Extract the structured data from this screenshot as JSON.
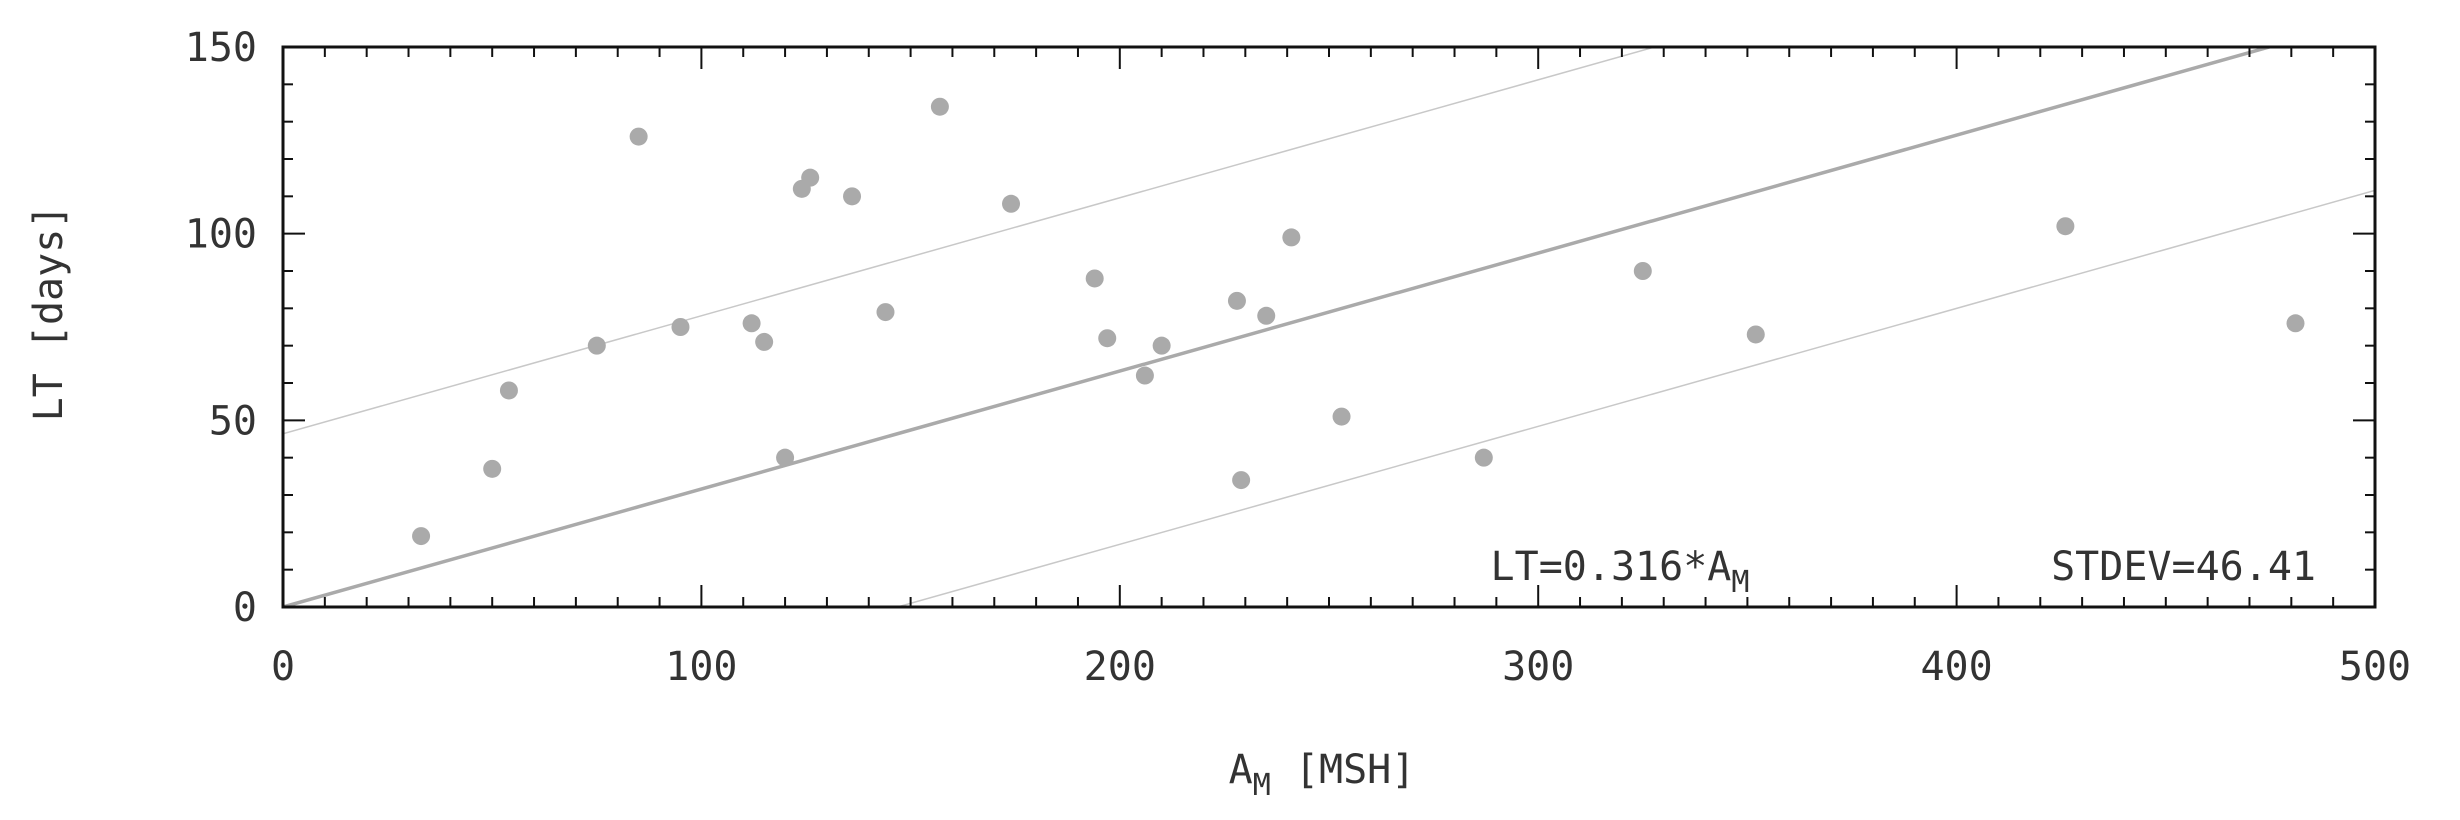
{
  "chart_data": {
    "type": "scatter",
    "title": "",
    "xlabel": "A",
    "xlabel_sub": "M",
    "xlabel_unit": " [MSH]",
    "ylabel": "LT [days]",
    "xlim": [
      0,
      500
    ],
    "ylim": [
      0,
      150
    ],
    "x_ticks": [
      0,
      100,
      200,
      300,
      400,
      500
    ],
    "y_ticks": [
      0,
      50,
      100,
      150
    ],
    "grid": false,
    "points": [
      {
        "x": 33,
        "y": 19
      },
      {
        "x": 50,
        "y": 37
      },
      {
        "x": 54,
        "y": 58
      },
      {
        "x": 75,
        "y": 70
      },
      {
        "x": 85,
        "y": 126
      },
      {
        "x": 95,
        "y": 75
      },
      {
        "x": 112,
        "y": 76
      },
      {
        "x": 115,
        "y": 71
      },
      {
        "x": 120,
        "y": 40
      },
      {
        "x": 124,
        "y": 112
      },
      {
        "x": 126,
        "y": 115
      },
      {
        "x": 136,
        "y": 110
      },
      {
        "x": 144,
        "y": 79
      },
      {
        "x": 157,
        "y": 134
      },
      {
        "x": 174,
        "y": 108
      },
      {
        "x": 194,
        "y": 88
      },
      {
        "x": 197,
        "y": 72
      },
      {
        "x": 206,
        "y": 62
      },
      {
        "x": 210,
        "y": 70
      },
      {
        "x": 228,
        "y": 82
      },
      {
        "x": 229,
        "y": 34
      },
      {
        "x": 235,
        "y": 78
      },
      {
        "x": 241,
        "y": 99
      },
      {
        "x": 253,
        "y": 51
      },
      {
        "x": 287,
        "y": 40
      },
      {
        "x": 325,
        "y": 90
      },
      {
        "x": 352,
        "y": 73
      },
      {
        "x": 426,
        "y": 102
      },
      {
        "x": 481,
        "y": 76
      }
    ],
    "fit": {
      "slope": 0.316,
      "intercept": 0,
      "stdev": 46.41
    },
    "annotations": {
      "fit_prefix": "LT=0.316*A",
      "fit_sub": "M",
      "stdev": "STDEV=46.41"
    },
    "colors": {
      "points": "#aaaaaa",
      "fit_line": "#aaaaaa",
      "band_lines": "#c8c8c8",
      "axes": "#111111",
      "text": "#333333"
    }
  }
}
